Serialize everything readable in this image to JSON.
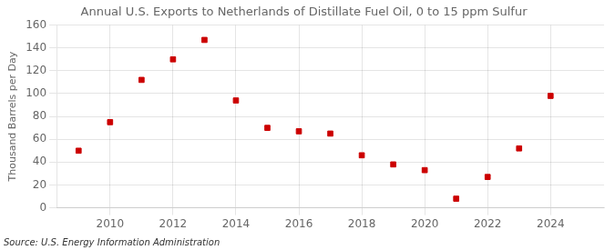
{
  "chart_data": {
    "type": "scatter",
    "title": "Annual U.S. Exports to Netherlands of Distillate Fuel Oil, 0 to 15 ppm Sulfur",
    "ylabel": "Thousand Barrels per Day",
    "annotations": [
      "Source: U.S. Energy Information Administration"
    ],
    "x": [
      2009,
      2010,
      2011,
      2012,
      2013,
      2014,
      2015,
      2016,
      2017,
      2018,
      2019,
      2020,
      2021,
      2022,
      2023,
      2024
    ],
    "values": [
      50,
      75,
      112,
      130,
      147,
      94,
      70,
      67,
      65,
      46,
      38,
      33,
      8,
      27,
      52,
      98
    ],
    "color": "#cc0000",
    "marker": "square",
    "xlim": [
      2008.3,
      2025.7
    ],
    "xticks": [
      2010,
      2012,
      2014,
      2016,
      2018,
      2020,
      2022,
      2024
    ],
    "ylim": [
      0,
      160
    ],
    "yticks": [
      0,
      20,
      40,
      60,
      80,
      100,
      120,
      140,
      160
    ],
    "grid": true
  }
}
